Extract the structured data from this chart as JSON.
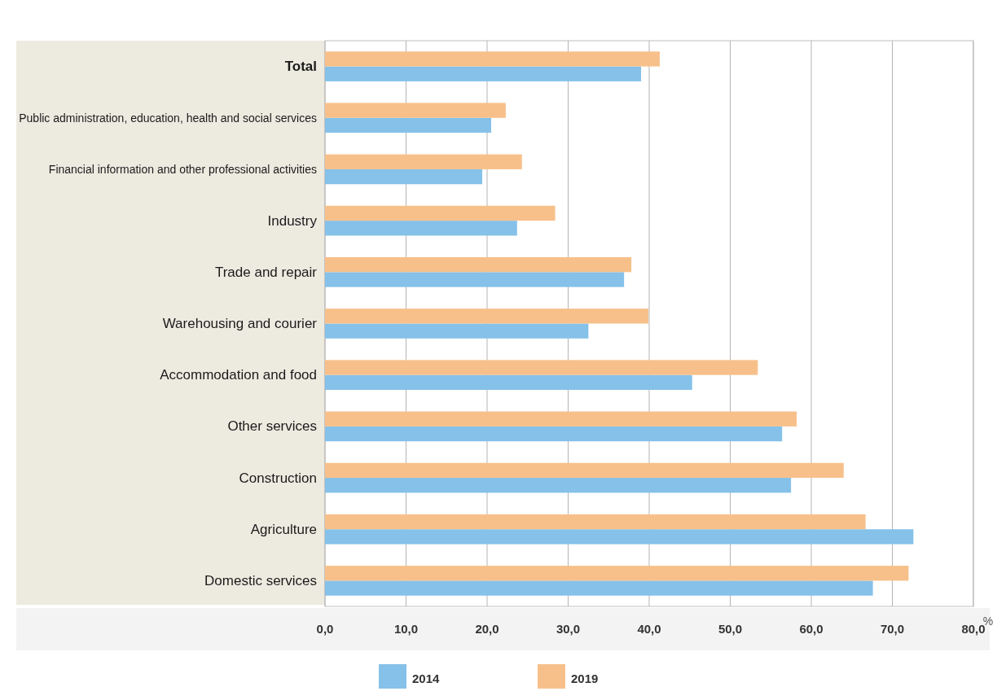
{
  "chart_data": {
    "type": "bar",
    "orientation": "horizontal",
    "xlabel": "%",
    "categories": [
      "Total",
      "Public administration, education, health and social services",
      "Financial information and other professional activities",
      "Industry",
      "Trade and repair",
      "Warehousing and courier",
      "Accommodation and food",
      "Other services",
      "Construction",
      "Agriculture",
      "Domestic services"
    ],
    "series": [
      {
        "name": "2014",
        "color": "#85c1e9",
        "values": [
          39.0,
          20.5,
          19.4,
          23.7,
          36.9,
          32.5,
          45.3,
          56.4,
          57.5,
          72.6,
          67.6
        ]
      },
      {
        "name": "2019",
        "color": "#f7c08a",
        "values": [
          41.3,
          22.3,
          24.3,
          28.4,
          37.8,
          39.9,
          53.4,
          58.2,
          64.0,
          66.7,
          72.0
        ]
      }
    ],
    "xlim": [
      0,
      80
    ],
    "xticks": [
      {
        "value": 0,
        "label": "0,0"
      },
      {
        "value": 10,
        "label": "10,0"
      },
      {
        "value": 20,
        "label": "20,0"
      },
      {
        "value": 30,
        "label": "30,0"
      },
      {
        "value": 40,
        "label": "40,0"
      },
      {
        "value": 50,
        "label": "50,0"
      },
      {
        "value": 60,
        "label": "60,0"
      },
      {
        "value": 70,
        "label": "70,0"
      },
      {
        "value": 80,
        "label": "80,0"
      }
    ],
    "grid": "x",
    "legend": "bottom"
  }
}
